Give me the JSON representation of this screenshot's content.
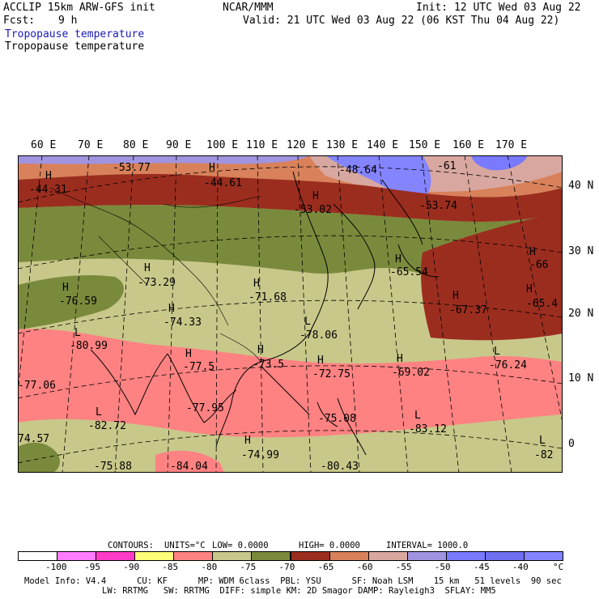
{
  "header": {
    "model": "ACCLIP 15km ARW-GFS init",
    "center": "NCAR/MMM",
    "init": "Init: 12 UTC Wed 03 Aug 22",
    "fcst_label": "Fcst:",
    "fcst_value": "9 h",
    "valid": "Valid: 21 UTC Wed 03 Aug 22 (06 KST Thu 04 Aug 22)",
    "field_title_1": "Tropopause temperature",
    "field_title_2": "Tropopause temperature"
  },
  "map": {
    "lon_labels": [
      "60 E",
      "70 E",
      "80 E",
      "90 E",
      "100 E",
      "110 E",
      "120 E",
      "130 E",
      "140 E",
      "150 E",
      "160 E",
      "170 E"
    ],
    "lat_labels": [
      "40 N",
      "30 N",
      "20 N",
      "10 N",
      "0"
    ],
    "features": [
      {
        "type": "H",
        "value": "-44.31"
      },
      {
        "type": "",
        "value": "-53.77"
      },
      {
        "type": "H",
        "value": "-44.61"
      },
      {
        "type": "",
        "value": "-48.64"
      },
      {
        "type": "",
        "value": "-61"
      },
      {
        "type": "H",
        "value": "-53.02"
      },
      {
        "type": "",
        "value": "-53.74"
      },
      {
        "type": "H",
        "value": "-73.29"
      },
      {
        "type": "H",
        "value": "-76.59"
      },
      {
        "type": "H",
        "value": "-71.68"
      },
      {
        "type": "H",
        "value": "-65.54"
      },
      {
        "type": "H",
        "value": "-66"
      },
      {
        "type": "H",
        "value": "-65.4"
      },
      {
        "type": "H",
        "value": "-67.37"
      },
      {
        "type": "H",
        "value": "-74.33"
      },
      {
        "type": "L",
        "value": "-80.99"
      },
      {
        "type": "L",
        "value": "-78.06"
      },
      {
        "type": "H",
        "value": "-73.5"
      },
      {
        "type": "H",
        "value": "-77.5"
      },
      {
        "type": "H",
        "value": "-72.75"
      },
      {
        "type": "H",
        "value": "-69.02"
      },
      {
        "type": "L",
        "value": "-76.24"
      },
      {
        "type": "",
        "value": "-77.06"
      },
      {
        "type": "L",
        "value": "-82.72"
      },
      {
        "type": "",
        "value": "-77.95"
      },
      {
        "type": "",
        "value": "-75.08"
      },
      {
        "type": "L",
        "value": "-83.12"
      },
      {
        "type": "",
        "value": "74.57"
      },
      {
        "type": "H",
        "value": "-74.99"
      },
      {
        "type": "L",
        "value": "-82"
      },
      {
        "type": "",
        "value": "-75.88"
      },
      {
        "type": "",
        "value": "-84.04"
      },
      {
        "type": "",
        "value": "-80.43"
      }
    ]
  },
  "contours": {
    "label": "CONTOURS:",
    "units": "UNITS=°C",
    "low": "LOW= 0.0000",
    "high": "HIGH= 0.0000",
    "interval": "INTERVAL= 1000.0"
  },
  "colorbar": {
    "colors": [
      "#ffffff",
      "#ff7cff",
      "#ff3cc8",
      "#ffff78",
      "#ff8282",
      "#c8c88a",
      "#7a8a3c",
      "#9b2d1f",
      "#d8815a",
      "#d8a8a0",
      "#a094e0",
      "#7a7aff",
      "#6e6ef0",
      "#8484ff"
    ],
    "ticks": [
      "-100",
      "-95",
      "-90",
      "-85",
      "-80",
      "-75",
      "-70",
      "-65",
      "-60",
      "-55",
      "-50",
      "-45",
      "-40"
    ],
    "unit": "°C"
  },
  "footer": {
    "line1": "Model Info: V4.4      CU: KF      MP: WDM 6class  PBL: YSU      SF: Noah LSM    15 km   51 levels  90 sec",
    "line2": "LW: RRTMG   SW: RRTMG  DIFF: simple KM: 2D Smagor DAMP: Rayleigh3  SFLAY: MM5"
  }
}
